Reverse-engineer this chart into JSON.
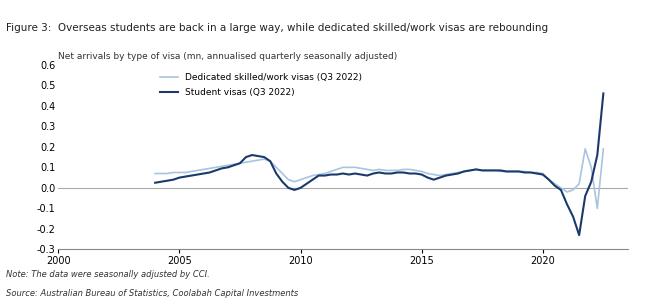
{
  "title": "Figure 3:  Overseas students are back in a large way, while dedicated skilled/work visas are rebounding",
  "subtitle": "Net arrivals by type of visa (mn, annualised quarterly seasonally adjusted)",
  "note": "Note: The data were seasonally adjusted by CCI.",
  "source": "Source: Australian Bureau of Statistics, Coolabah Capital Investments",
  "legend_labels": [
    "Dedicated skilled/work visas (Q3 2022)",
    "Student visas (Q3 2022)"
  ],
  "skilled_color": "#a8c4e0",
  "student_color": "#1a3a6b",
  "ylim": [
    -0.3,
    0.6
  ],
  "yticks": [
    -0.3,
    -0.2,
    -0.1,
    0.0,
    0.1,
    0.2,
    0.3,
    0.4,
    0.5,
    0.6
  ],
  "xlim_start": 2000.0,
  "xlim_end": 2023.5,
  "xticks": [
    2000,
    2005,
    2010,
    2015,
    2020
  ],
  "title_bg": "#d9e2f0",
  "background_color": "#ffffff",
  "skilled_x": [
    2004.0,
    2004.25,
    2004.5,
    2004.75,
    2005.0,
    2005.25,
    2005.5,
    2005.75,
    2006.0,
    2006.25,
    2006.5,
    2006.75,
    2007.0,
    2007.25,
    2007.5,
    2007.75,
    2008.0,
    2008.25,
    2008.5,
    2008.75,
    2009.0,
    2009.25,
    2009.5,
    2009.75,
    2010.0,
    2010.25,
    2010.5,
    2010.75,
    2011.0,
    2011.25,
    2011.5,
    2011.75,
    2012.0,
    2012.25,
    2012.5,
    2012.75,
    2013.0,
    2013.25,
    2013.5,
    2013.75,
    2014.0,
    2014.25,
    2014.5,
    2014.75,
    2015.0,
    2015.25,
    2015.5,
    2015.75,
    2016.0,
    2016.25,
    2016.5,
    2016.75,
    2017.0,
    2017.25,
    2017.5,
    2017.75,
    2018.0,
    2018.25,
    2018.5,
    2018.75,
    2019.0,
    2019.25,
    2019.5,
    2019.75,
    2020.0,
    2020.25,
    2020.5,
    2020.75,
    2021.0,
    2021.25,
    2021.5,
    2021.75,
    2022.0,
    2022.25,
    2022.5
  ],
  "skilled_y": [
    0.07,
    0.07,
    0.07,
    0.075,
    0.075,
    0.075,
    0.08,
    0.085,
    0.09,
    0.095,
    0.1,
    0.105,
    0.11,
    0.115,
    0.12,
    0.125,
    0.13,
    0.135,
    0.14,
    0.13,
    0.1,
    0.07,
    0.04,
    0.03,
    0.04,
    0.05,
    0.06,
    0.065,
    0.07,
    0.08,
    0.09,
    0.1,
    0.1,
    0.1,
    0.095,
    0.09,
    0.085,
    0.09,
    0.085,
    0.085,
    0.085,
    0.09,
    0.09,
    0.085,
    0.08,
    0.07,
    0.065,
    0.06,
    0.065,
    0.07,
    0.075,
    0.08,
    0.085,
    0.09,
    0.085,
    0.085,
    0.085,
    0.08,
    0.08,
    0.08,
    0.08,
    0.08,
    0.075,
    0.075,
    0.07,
    0.04,
    0.02,
    0.0,
    -0.02,
    -0.01,
    0.02,
    0.19,
    0.1,
    -0.1,
    0.19
  ],
  "student_x": [
    2004.0,
    2004.25,
    2004.5,
    2004.75,
    2005.0,
    2005.25,
    2005.5,
    2005.75,
    2006.0,
    2006.25,
    2006.5,
    2006.75,
    2007.0,
    2007.25,
    2007.5,
    2007.75,
    2008.0,
    2008.25,
    2008.5,
    2008.75,
    2009.0,
    2009.25,
    2009.5,
    2009.75,
    2010.0,
    2010.25,
    2010.5,
    2010.75,
    2011.0,
    2011.25,
    2011.5,
    2011.75,
    2012.0,
    2012.25,
    2012.5,
    2012.75,
    2013.0,
    2013.25,
    2013.5,
    2013.75,
    2014.0,
    2014.25,
    2014.5,
    2014.75,
    2015.0,
    2015.25,
    2015.5,
    2015.75,
    2016.0,
    2016.25,
    2016.5,
    2016.75,
    2017.0,
    2017.25,
    2017.5,
    2017.75,
    2018.0,
    2018.25,
    2018.5,
    2018.75,
    2019.0,
    2019.25,
    2019.5,
    2019.75,
    2020.0,
    2020.25,
    2020.5,
    2020.75,
    2021.0,
    2021.25,
    2021.5,
    2021.75,
    2022.0,
    2022.25,
    2022.5
  ],
  "student_y": [
    0.025,
    0.03,
    0.035,
    0.04,
    0.05,
    0.055,
    0.06,
    0.065,
    0.07,
    0.075,
    0.085,
    0.095,
    0.1,
    0.11,
    0.12,
    0.15,
    0.16,
    0.155,
    0.15,
    0.13,
    0.07,
    0.03,
    0.0,
    -0.01,
    0.0,
    0.02,
    0.04,
    0.06,
    0.06,
    0.065,
    0.065,
    0.07,
    0.065,
    0.07,
    0.065,
    0.06,
    0.07,
    0.075,
    0.07,
    0.07,
    0.075,
    0.075,
    0.07,
    0.07,
    0.065,
    0.05,
    0.04,
    0.05,
    0.06,
    0.065,
    0.07,
    0.08,
    0.085,
    0.09,
    0.085,
    0.085,
    0.085,
    0.085,
    0.08,
    0.08,
    0.08,
    0.075,
    0.075,
    0.07,
    0.065,
    0.04,
    0.01,
    -0.01,
    -0.08,
    -0.14,
    -0.23,
    -0.04,
    0.03,
    0.16,
    0.46
  ]
}
